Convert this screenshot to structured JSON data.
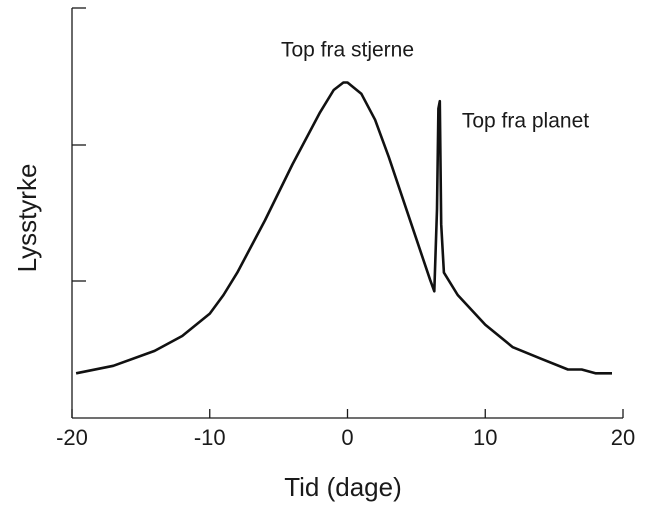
{
  "chart_data": {
    "type": "line",
    "xlabel": "Tid (dage)",
    "ylabel": "Lysstyrke",
    "xlim": [
      -20,
      20
    ],
    "ylim": [
      0,
      1.1
    ],
    "x_ticks": [
      -20,
      -10,
      0,
      10,
      20
    ],
    "y_ticks_labeled": false,
    "grid": false,
    "series": [
      {
        "x": [
          -19.7,
          -17,
          -14,
          -12,
          -10,
          -9,
          -8,
          -6,
          -4,
          -2,
          -1,
          -0.3,
          0,
          1,
          2,
          3,
          4,
          5,
          6,
          6.3,
          6.5,
          6.6,
          6.7,
          6.8,
          7,
          8,
          10,
          12,
          14,
          16,
          17,
          18,
          19.2
        ],
        "y": [
          0.12,
          0.14,
          0.18,
          0.22,
          0.28,
          0.33,
          0.39,
          0.53,
          0.68,
          0.82,
          0.88,
          0.9,
          0.9,
          0.87,
          0.8,
          0.7,
          0.59,
          0.48,
          0.37,
          0.34,
          0.56,
          0.83,
          0.85,
          0.52,
          0.39,
          0.33,
          0.25,
          0.19,
          0.16,
          0.13,
          0.13,
          0.12,
          0.12
        ]
      }
    ],
    "annotations": [
      {
        "text": "Top fra stjerne",
        "x": 0,
        "y": 0.97
      },
      {
        "text": "Top fra planet",
        "x": 8.3,
        "y": 0.78
      }
    ]
  }
}
